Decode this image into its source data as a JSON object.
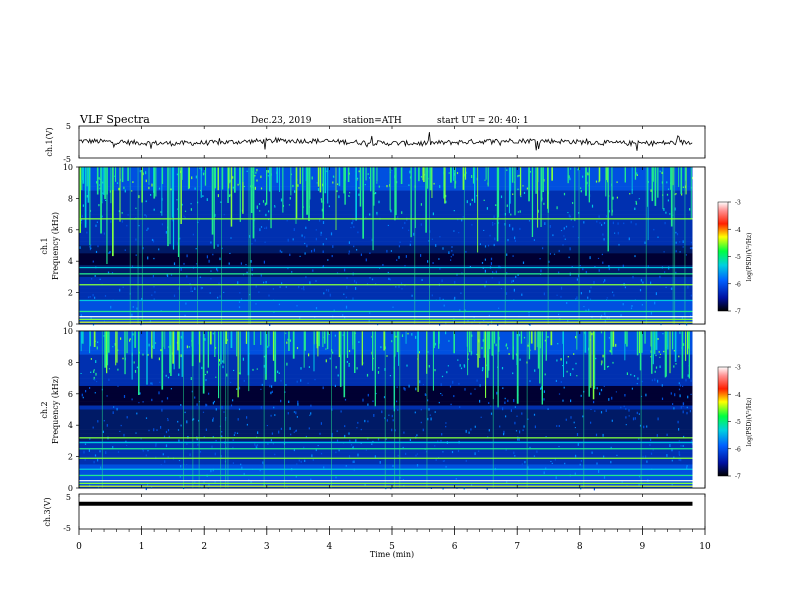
{
  "header": {
    "title": "VLF  Spectra",
    "date": "Dec.23, 2019",
    "station": "station=ATH",
    "start": "start  UT  =   20: 40: 1"
  },
  "chart_data": [
    {
      "type": "line",
      "panel": "ch1-waveform",
      "ylabel": "ch.1(V)",
      "ylim": [
        -5,
        5
      ],
      "yticks": [
        "5",
        "-5"
      ],
      "xlim": [
        0,
        10
      ],
      "series_color": "#000000",
      "mean_level": 0
    },
    {
      "type": "heatmap",
      "panel": "ch1-spectrogram",
      "ylabel": "ch.1\nFrequency  (kHz)",
      "ylim": [
        0,
        10
      ],
      "yticks": [
        "0",
        "2",
        "4",
        "6",
        "8",
        "10"
      ],
      "xlim": [
        0,
        9.8
      ],
      "colorbar": {
        "label": "log(PSD)(V²/Hz)",
        "ticks": [
          "-3",
          "-4",
          "-5",
          "-6",
          "-7"
        ],
        "range": [
          -7,
          -3
        ]
      },
      "bright_lines_khz": [
        0.3,
        0.8,
        1.5,
        2.5,
        3.2,
        3.6,
        6.7
      ],
      "dark_band_khz": [
        3.8,
        4.6
      ]
    },
    {
      "type": "heatmap",
      "panel": "ch2-spectrogram",
      "ylabel": "ch.2\nFrequency  (kHz)",
      "ylim": [
        0,
        10
      ],
      "yticks": [
        "0",
        "2",
        "4",
        "6",
        "8",
        "10"
      ],
      "xlim": [
        0,
        9.8
      ],
      "colorbar": {
        "label": "log(PSD)(V²/Hz)",
        "ticks": [
          "-3",
          "-4",
          "-5",
          "-6",
          "-7"
        ],
        "range": [
          -7,
          -3
        ]
      },
      "bright_lines_khz": [
        0.3,
        0.8,
        1.2,
        1.9,
        2.5,
        2.9,
        3.2
      ],
      "dark_band_khz": [
        5.5,
        6.5
      ]
    },
    {
      "type": "line",
      "panel": "ch3-waveform",
      "ylabel": "ch.3(V)",
      "ylim": [
        -5,
        5
      ],
      "yticks": [
        "5",
        "-5"
      ],
      "xlim": [
        0,
        10
      ],
      "series_color": "#000000",
      "constant_value": 2.2
    }
  ],
  "xaxis": {
    "label": "Time  (min)",
    "ticks": [
      "0",
      "1",
      "2",
      "3",
      "4",
      "5",
      "6",
      "7",
      "8",
      "9",
      "10"
    ],
    "range": [
      0,
      10
    ]
  },
  "palette": [
    "#000033",
    "#001a66",
    "#0030b0",
    "#0050e0",
    "#0088ff",
    "#00c8e0",
    "#20e890",
    "#80ff40",
    "#e0ff20",
    "#ffb000",
    "#ff3000",
    "#ff9090",
    "#ffffff"
  ]
}
